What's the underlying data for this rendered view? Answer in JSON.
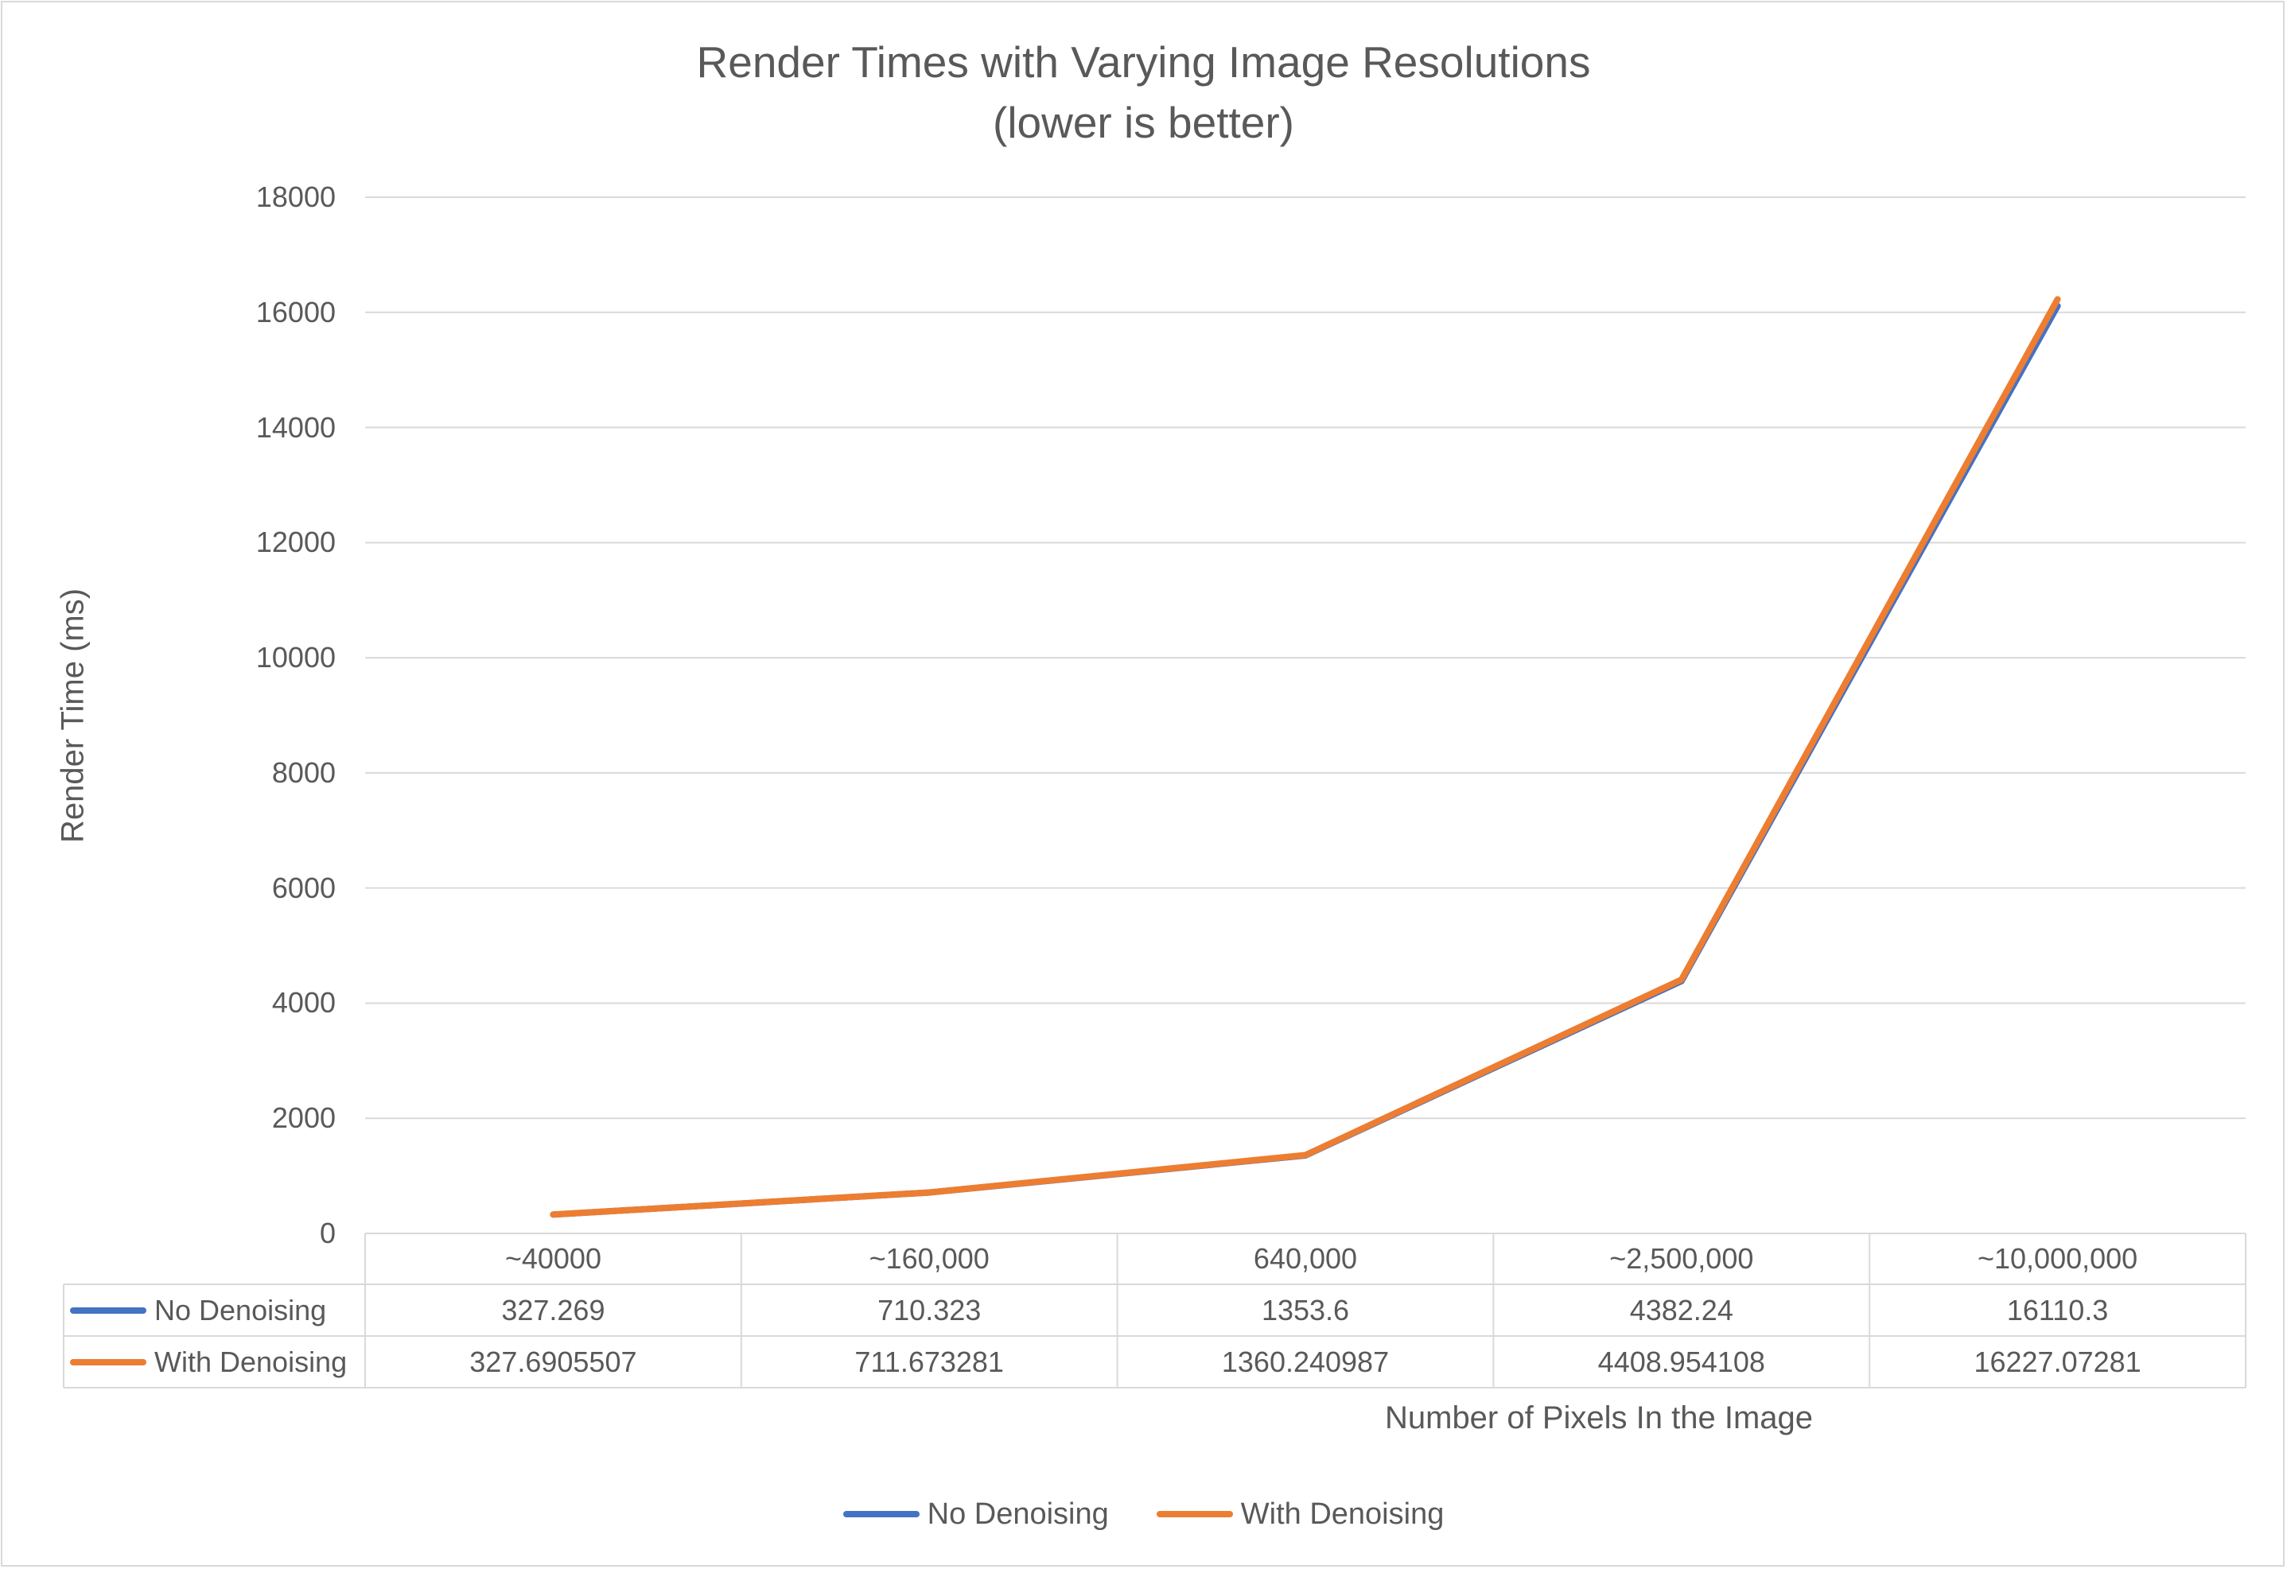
{
  "chart_data": {
    "type": "line",
    "title": "Render Times with Varying Image Resolutions",
    "subtitle": "(lower is better)",
    "xlabel": "Number of Pixels In the Image",
    "ylabel": "Render Time (ms)",
    "ylim": [
      0,
      18000
    ],
    "yticks": [
      "18000",
      "16000",
      "14000",
      "12000",
      "10000",
      "8000",
      "6000",
      "4000",
      "2000",
      "0"
    ],
    "grid": true,
    "legend_position": "bottom",
    "data_table": true,
    "categories": [
      "~40000",
      "~160,000",
      "640,000",
      "~2,500,000",
      "~10,000,000"
    ],
    "series": [
      {
        "name": "No Denoising",
        "color": "#4472c4",
        "values": [
          327.269,
          710.323,
          1353.6,
          4382.24,
          16110.3
        ],
        "labels": [
          "327.269",
          "710.323",
          "1353.6",
          "4382.24",
          "16110.3"
        ]
      },
      {
        "name": "With Denoising",
        "color": "#ed7d31",
        "values": [
          327.6905507,
          711.673281,
          1360.240987,
          4408.954108,
          16227.07281
        ],
        "labels": [
          "327.6905507",
          "711.673281",
          "1360.240987",
          "4408.954108",
          "16227.07281"
        ]
      }
    ]
  }
}
